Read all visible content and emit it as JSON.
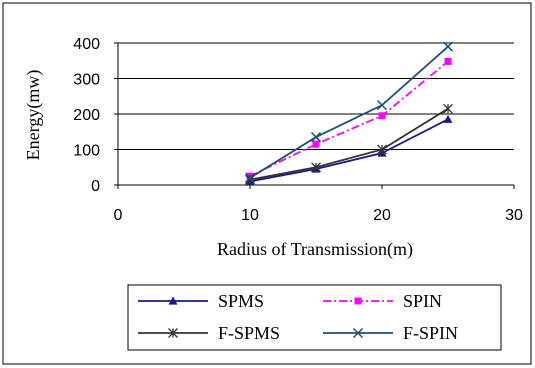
{
  "chart_data": {
    "type": "line",
    "title": "",
    "xlabel": "Radius of Transmission(m)",
    "ylabel": "Energy(mw)",
    "xlim": [
      0,
      30
    ],
    "ylim": [
      0,
      400
    ],
    "xticks": [
      0,
      10,
      20,
      30
    ],
    "yticks": [
      0,
      100,
      200,
      300,
      400
    ],
    "grid": "horizontal",
    "legend_position": "bottom",
    "x": [
      10,
      15,
      20,
      25
    ],
    "series": [
      {
        "name": "SPMS",
        "values": [
          10,
          45,
          90,
          185
        ],
        "color": "#1a1a8c",
        "marker": "triangle",
        "dash": "solid"
      },
      {
        "name": "SPIN",
        "values": [
          25,
          115,
          195,
          348
        ],
        "color": "#ff00ff",
        "marker": "square",
        "dash": "dashdot"
      },
      {
        "name": "F-SPMS",
        "values": [
          15,
          50,
          100,
          215
        ],
        "color": "#333333",
        "marker": "star",
        "dash": "solid"
      },
      {
        "name": "F-SPIN",
        "values": [
          20,
          135,
          225,
          390
        ],
        "color": "#1f4e79",
        "marker": "x",
        "dash": "solid"
      }
    ]
  }
}
